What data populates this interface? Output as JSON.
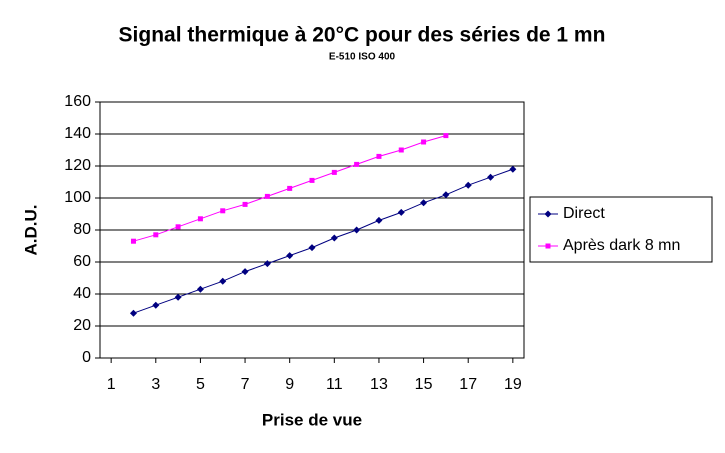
{
  "chart_data": {
    "type": "line",
    "title": "Signal thermique à 20°C pour des séries de 1 mn",
    "subtitle": "E-510 ISO 400",
    "x_label": "Prise de vue",
    "y_label": "A.D.U.",
    "x": [
      1,
      2,
      3,
      4,
      5,
      6,
      7,
      8,
      9,
      10,
      11,
      12,
      13,
      14,
      15,
      16,
      17,
      18,
      19
    ],
    "series": [
      {
        "name": "Direct",
        "color": "#000080",
        "marker": "diamond",
        "values": [
          null,
          28,
          33,
          38,
          43,
          48,
          54,
          59,
          64,
          69,
          75,
          80,
          86,
          91,
          97,
          102,
          108,
          113,
          118
        ]
      },
      {
        "name": "Après dark 8 mn",
        "color": "#ff00ff",
        "marker": "square",
        "values": [
          null,
          73,
          77,
          82,
          87,
          92,
          96,
          101,
          106,
          111,
          116,
          121,
          126,
          130,
          135,
          139,
          null,
          null,
          null
        ]
      }
    ],
    "xlim": [
      0.5,
      19.5
    ],
    "xticks": [
      1,
      3,
      5,
      7,
      9,
      11,
      13,
      15,
      17,
      19
    ],
    "ylim": [
      0,
      160
    ],
    "yticks": [
      0,
      20,
      40,
      60,
      80,
      100,
      120,
      140,
      160
    ],
    "grid": true,
    "legend": "right"
  }
}
